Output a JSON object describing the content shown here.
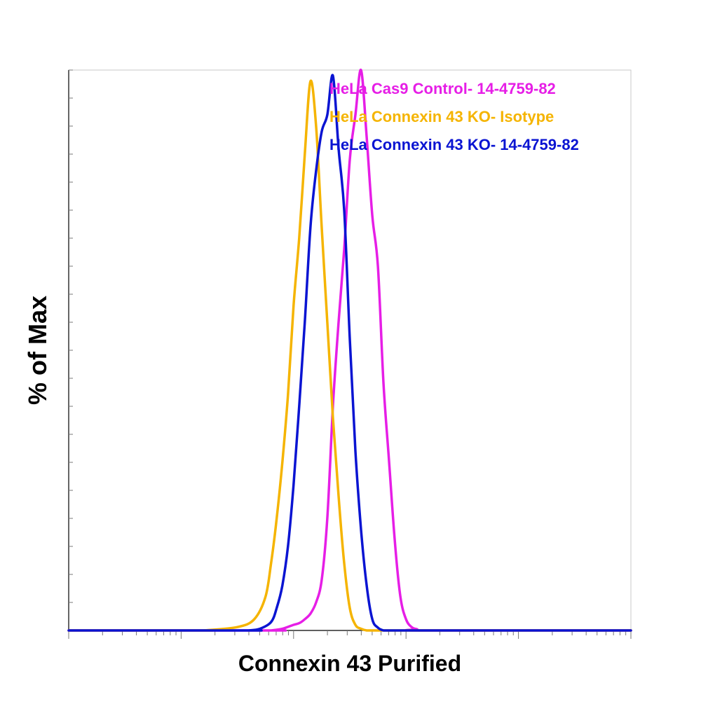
{
  "chart_data": {
    "type": "line",
    "title": "",
    "xlabel": "Connexin 43 Purified",
    "ylabel": "% of Max",
    "x_scale": "log",
    "xlim_decades": [
      0,
      5
    ],
    "ylim": [
      0,
      100
    ],
    "grid": false,
    "legend_position": "top-right",
    "series": [
      {
        "name": "HeLa Cas9 Control- 14-4759-82",
        "color": "#e61ee6",
        "x": [
          1.8,
          1.9,
          2.0,
          2.05,
          2.1,
          2.15,
          2.2,
          2.25,
          2.3,
          2.35,
          2.4,
          2.45,
          2.5,
          2.55,
          2.6,
          2.65,
          2.7,
          2.75,
          2.8,
          2.85,
          2.9,
          2.95,
          3.0,
          3.05,
          3.1,
          3.15
        ],
        "y": [
          0,
          0.3,
          1,
          1.3,
          2,
          3,
          5,
          9,
          20,
          40,
          55,
          68,
          84,
          92,
          100,
          88,
          74,
          65,
          44,
          30,
          16,
          6,
          2,
          0.6,
          0.2,
          0
        ]
      },
      {
        "name": "HeLa Connexin 43 KO- Isotype",
        "color": "#f5b400",
        "x": [
          1.2,
          1.5,
          1.65,
          1.75,
          1.8,
          1.85,
          1.9,
          1.95,
          2.0,
          2.05,
          2.1,
          2.15,
          2.2,
          2.25,
          2.3,
          2.35,
          2.4,
          2.45,
          2.5,
          2.55,
          2.6,
          2.65,
          2.7,
          2.75,
          2.8,
          3.0
        ],
        "y": [
          0,
          0.6,
          2,
          6,
          12,
          20,
          30,
          42,
          58,
          70,
          85,
          98,
          90,
          72,
          55,
          38,
          24,
          12,
          4,
          1,
          0.3,
          0,
          0,
          0,
          0,
          0
        ]
      },
      {
        "name": "HeLa Connexin 43 KO- 14-4759-82",
        "color": "#0a14d2",
        "x": [
          1.6,
          1.7,
          1.8,
          1.85,
          1.9,
          1.95,
          2.0,
          2.05,
          2.1,
          2.15,
          2.2,
          2.25,
          2.3,
          2.35,
          2.4,
          2.45,
          2.5,
          2.55,
          2.6,
          2.65,
          2.7,
          2.75,
          2.8,
          2.85,
          2.9,
          3.0
        ],
        "y": [
          0,
          0.3,
          1.5,
          4,
          8,
          15,
          26,
          40,
          55,
          72,
          82,
          89,
          92,
          99,
          86,
          75,
          52,
          32,
          18,
          8,
          2,
          0.5,
          0,
          0,
          0,
          0
        ]
      }
    ]
  }
}
